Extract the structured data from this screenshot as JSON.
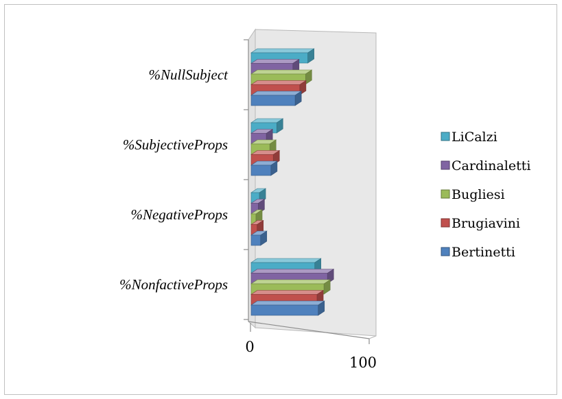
{
  "chart_data": {
    "type": "bar",
    "orientation": "horizontal",
    "style": "3d-clustered",
    "categories": [
      "%NonfactiveProps",
      "%NegativeProps",
      "%SubjectiveProps",
      "%NullSubject"
    ],
    "series": [
      {
        "name": "Bertinetti",
        "color": "#4f81bd",
        "values": [
          57,
          7,
          16,
          37
        ]
      },
      {
        "name": "Brugiavini",
        "color": "#c0504d",
        "values": [
          56,
          4,
          18,
          41
        ]
      },
      {
        "name": "Bugliesi",
        "color": "#9bbb59",
        "values": [
          62,
          3,
          15,
          46
        ]
      },
      {
        "name": "Cardinaletti",
        "color": "#8064a2",
        "values": [
          65,
          5,
          12,
          35
        ]
      },
      {
        "name": "LiCalzi",
        "color": "#4bacc6",
        "values": [
          54,
          6,
          21,
          48
        ]
      }
    ],
    "xlim": [
      0,
      100
    ],
    "x_ticks": [
      "0",
      "100"
    ],
    "legend_position": "right",
    "legend_order": [
      "LiCalzi",
      "Cardinaletti",
      "Bugliesi",
      "Brugiavini",
      "Bertinetti"
    ],
    "title": "",
    "xlabel": "",
    "ylabel": ""
  }
}
